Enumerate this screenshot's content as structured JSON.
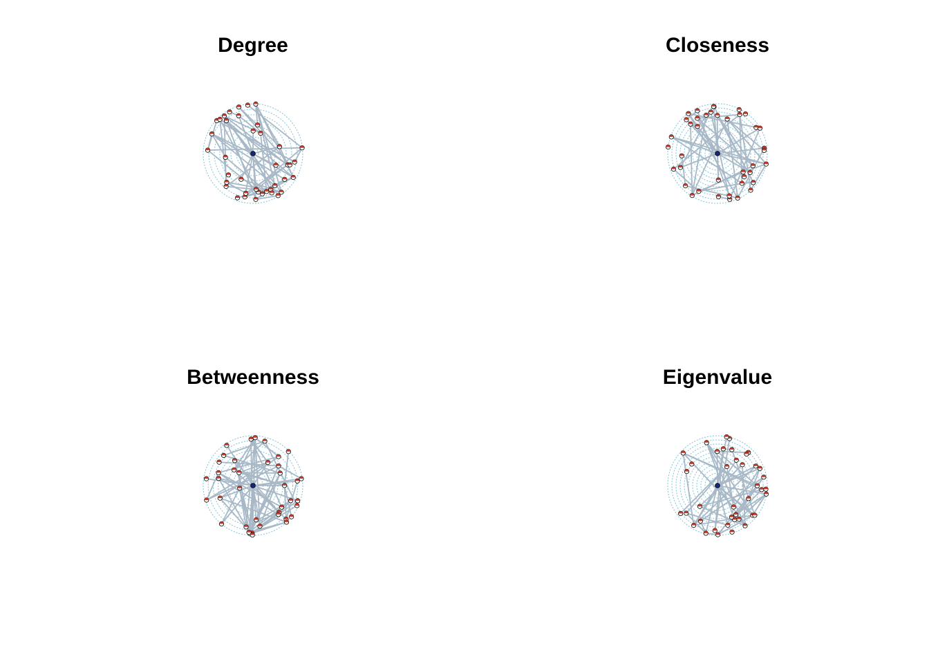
{
  "colors": {
    "ring": "#7ec3d6",
    "edge": "#a8b8c6",
    "node_fill_a": "#c0392b",
    "node_fill_b": "#ffffff",
    "node_stroke": "#000000",
    "center_node": "#1a237e"
  },
  "panels": [
    {
      "title": "Degree"
    },
    {
      "title": "Closeness"
    },
    {
      "title": "Betweenness"
    },
    {
      "title": "Eigenvalue"
    }
  ]
}
